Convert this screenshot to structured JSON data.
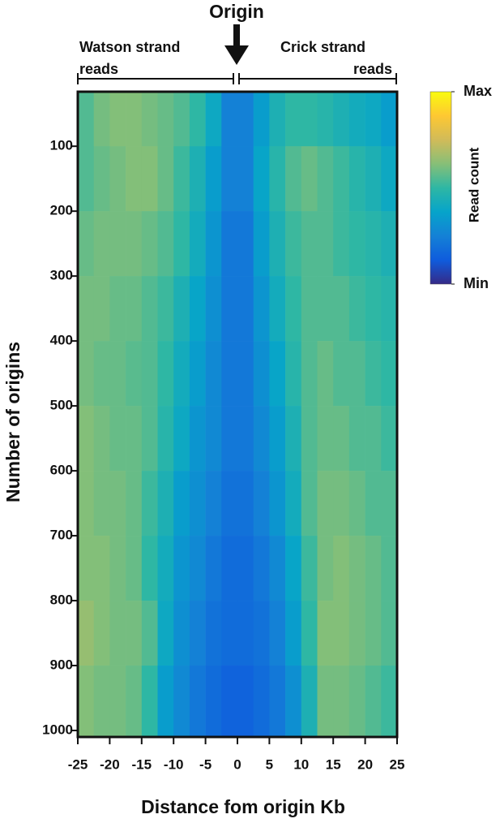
{
  "chart_data": {
    "type": "heatmap",
    "title": "Origin",
    "xlabel": "Distance fom origin Kb",
    "ylabel": "Number of origins",
    "left_annotation": [
      "Watson strand",
      "reads"
    ],
    "right_annotation": [
      "Crick strand",
      "reads"
    ],
    "colorbar_label": "Read count",
    "xlim": [
      -25,
      25
    ],
    "xticks": [
      -25,
      -20,
      -15,
      -10,
      -5,
      0,
      5,
      10,
      15,
      20,
      25
    ],
    "ylim": [
      16,
      1010
    ],
    "yticks": [
      100,
      200,
      300,
      400,
      500,
      600,
      700,
      800,
      900,
      1000
    ],
    "xbins": [
      -25,
      -22.5,
      -20,
      -17.5,
      -15,
      -12.5,
      -10,
      -7.5,
      -5,
      -2.5,
      0,
      2.5,
      5,
      7.5,
      10,
      12.5,
      15,
      17.5,
      20,
      22.5,
      25
    ],
    "ybins": [
      16,
      100,
      200,
      300,
      400,
      500,
      600,
      700,
      800,
      900,
      1010
    ],
    "zlim": [
      0,
      1
    ],
    "zticks": [
      {
        "value": 0,
        "label": "Min"
      },
      {
        "value": 1,
        "label": "Max"
      }
    ],
    "colormap": [
      "#352a87",
      "#0f5cdd",
      "#1481d6",
      "#06a4ca",
      "#2eb7a4",
      "#87bf77",
      "#d1bb59",
      "#fec832",
      "#f9fb0e"
    ],
    "values": [
      [
        0.55,
        0.6,
        0.62,
        0.62,
        0.6,
        0.58,
        0.55,
        0.5,
        0.4,
        0.25,
        0.25,
        0.35,
        0.45,
        0.5,
        0.5,
        0.48,
        0.45,
        0.42,
        0.4,
        0.35
      ],
      [
        0.55,
        0.58,
        0.6,
        0.62,
        0.62,
        0.58,
        0.52,
        0.45,
        0.35,
        0.25,
        0.25,
        0.38,
        0.48,
        0.55,
        0.58,
        0.55,
        0.52,
        0.48,
        0.45,
        0.4
      ],
      [
        0.58,
        0.6,
        0.6,
        0.6,
        0.58,
        0.55,
        0.5,
        0.42,
        0.32,
        0.22,
        0.22,
        0.35,
        0.45,
        0.52,
        0.55,
        0.55,
        0.52,
        0.5,
        0.48,
        0.45
      ],
      [
        0.6,
        0.6,
        0.58,
        0.58,
        0.55,
        0.52,
        0.45,
        0.38,
        0.3,
        0.22,
        0.22,
        0.32,
        0.42,
        0.5,
        0.55,
        0.55,
        0.55,
        0.52,
        0.5,
        0.48
      ],
      [
        0.6,
        0.58,
        0.58,
        0.56,
        0.55,
        0.5,
        0.42,
        0.35,
        0.28,
        0.22,
        0.22,
        0.3,
        0.38,
        0.48,
        0.55,
        0.58,
        0.55,
        0.55,
        0.52,
        0.5
      ],
      [
        0.62,
        0.6,
        0.58,
        0.58,
        0.55,
        0.48,
        0.4,
        0.32,
        0.28,
        0.22,
        0.22,
        0.28,
        0.35,
        0.45,
        0.55,
        0.58,
        0.58,
        0.55,
        0.55,
        0.52
      ],
      [
        0.62,
        0.6,
        0.6,
        0.58,
        0.52,
        0.45,
        0.35,
        0.3,
        0.25,
        0.2,
        0.2,
        0.25,
        0.32,
        0.42,
        0.55,
        0.6,
        0.6,
        0.58,
        0.55,
        0.55
      ],
      [
        0.62,
        0.62,
        0.6,
        0.58,
        0.5,
        0.42,
        0.32,
        0.28,
        0.22,
        0.18,
        0.18,
        0.22,
        0.28,
        0.38,
        0.52,
        0.6,
        0.62,
        0.6,
        0.58,
        0.55
      ],
      [
        0.65,
        0.62,
        0.6,
        0.6,
        0.55,
        0.4,
        0.3,
        0.25,
        0.2,
        0.18,
        0.18,
        0.2,
        0.25,
        0.35,
        0.5,
        0.62,
        0.62,
        0.6,
        0.58,
        0.55
      ],
      [
        0.62,
        0.6,
        0.6,
        0.58,
        0.5,
        0.35,
        0.28,
        0.22,
        0.18,
        0.15,
        0.15,
        0.18,
        0.22,
        0.3,
        0.45,
        0.6,
        0.6,
        0.58,
        0.55,
        0.52
      ]
    ]
  }
}
